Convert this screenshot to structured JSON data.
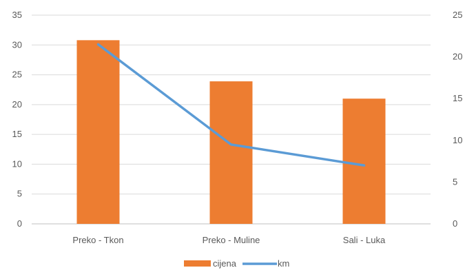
{
  "chart_data": {
    "type": "bar",
    "categories": [
      "Preko - Tkon",
      "Preko - Muline",
      "Sali - Luka"
    ],
    "series": [
      {
        "name": "cijena",
        "type": "bar",
        "axis": "left",
        "values": [
          30.8,
          23.9,
          21.0
        ],
        "color": "#ED7D31"
      },
      {
        "name": "km",
        "type": "line",
        "axis": "right",
        "values": [
          21.5,
          9.5,
          7.0
        ],
        "color": "#5B9BD5"
      }
    ],
    "ylim": [
      0,
      35
    ],
    "y_ticks": [
      "0",
      "5",
      "10",
      "15",
      "20",
      "25",
      "30",
      "35"
    ],
    "y2lim": [
      0,
      25
    ],
    "y2_ticks": [
      "0",
      "5",
      "10",
      "15",
      "20",
      "25"
    ],
    "gridlines": true,
    "legend_position": "bottom"
  }
}
